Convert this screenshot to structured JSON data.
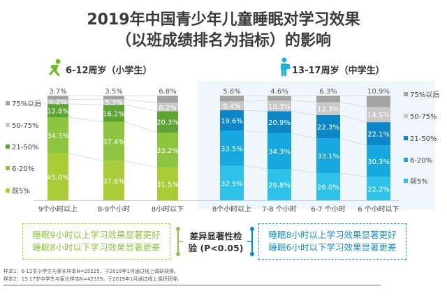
{
  "title": {
    "line1": "2019年中国青少年儿童睡眠对学习效果",
    "line2": "（以班成绩排名为指标）的影响"
  },
  "chart_data": [
    {
      "type": "bar",
      "stacked": true,
      "title": "6-12周岁（小学生）",
      "icon": "running-child-icon",
      "categories": [
        "9个小时以上",
        "8-9个小时",
        "8小时以下"
      ],
      "legend_position": "left",
      "series": [
        {
          "name": "前5%",
          "color": "#a9cd36",
          "values": [
            45.0,
            37.6,
            31.5
          ]
        },
        {
          "name": "6-20%",
          "color": "#8dc540",
          "values": [
            34.3,
            37.4,
            33.2
          ]
        },
        {
          "name": "21-50%",
          "color": "#5ca433",
          "values": [
            12.8,
            16.2,
            20.3
          ]
        },
        {
          "name": "50-75%",
          "color": "#c8c8c8",
          "values": [
            4.2,
            5.3,
            8.2
          ]
        },
        {
          "name": "75%以后",
          "color": "#a3a3a3",
          "values": [
            3.7,
            3.5,
            6.8
          ]
        }
      ],
      "ylim": [
        0,
        100
      ]
    },
    {
      "type": "bar",
      "stacked": true,
      "title": "13-17周岁（中学生）",
      "icon": "student-backpack-icon",
      "categories": [
        "8个小时以上",
        "7-8  个小时",
        "6-7  个小时",
        "6  个小时以下"
      ],
      "legend_position": "right",
      "series": [
        {
          "name": "前5%",
          "color": "#2ec1ea",
          "values": [
            32.9,
            29.8,
            26.0,
            22.2
          ]
        },
        {
          "name": "6-20%",
          "color": "#18a8e0",
          "values": [
            33.5,
            34.3,
            33.1,
            30.3
          ]
        },
        {
          "name": "21-50%",
          "color": "#0c86c6",
          "values": [
            19.6,
            20.9,
            22.3,
            22.1
          ]
        },
        {
          "name": "50-75%",
          "color": "#c8c8c8",
          "values": [
            8.4,
            10.3,
            12.3,
            14.5
          ]
        },
        {
          "name": "75%以后",
          "color": "#a3a3a3",
          "values": [
            5.6,
            4.6,
            6.3,
            10.9
          ]
        }
      ],
      "ylim": [
        0,
        100
      ]
    }
  ],
  "conclusions": {
    "primary": [
      "睡眠9小时以上学习效果显著更好",
      "睡眠8小时以下学习效果显著更差"
    ],
    "test": [
      "差异显著性检",
      "验 (P<0.05)"
    ],
    "secondary": [
      "睡眠8小时以上学习效果显著更好",
      "睡眠6小时以下学习效果显著更差"
    ]
  },
  "footnotes": [
    "样本1：6-12岁小学生与家长样本N=25225，于2019年1月通过线上调研获得。",
    "样本2：13-17岁中学生与家长样本N=42339，于2019年1月通过线上调研获得。"
  ],
  "colors": {
    "green_text": "#8dc540",
    "blue_text": "#1a8fc4",
    "green_accent": "#8dc540",
    "blue_accent": "#0c86c6"
  }
}
